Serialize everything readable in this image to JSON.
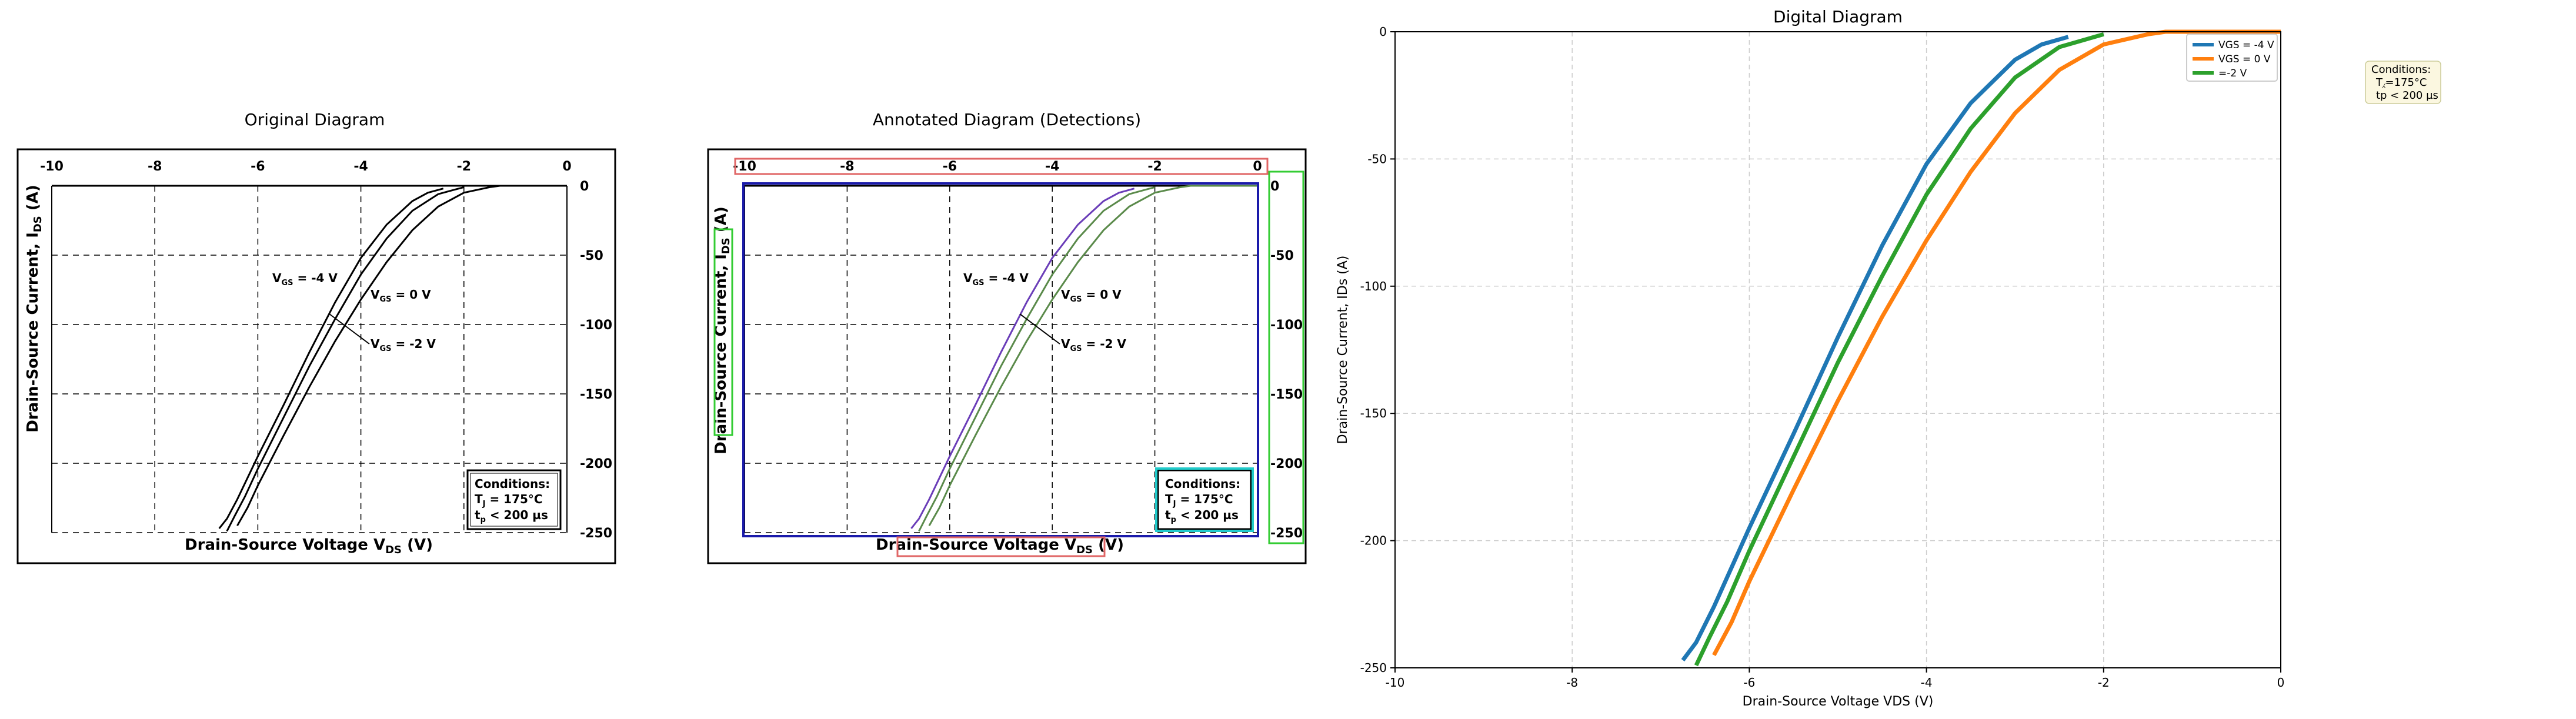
{
  "panels": {
    "original_title": "Original Diagram",
    "annotated_title": "Annotated Diagram (Detections)",
    "digital_title": "Digital Diagram"
  },
  "source_chart": {
    "ylabel_main": "Drain-Source Current, I",
    "ylabel_sub": "DS",
    "ylabel_unit": "(A)",
    "xlabel_main": "Drain-Source Voltage V",
    "xlabel_sub": "DS",
    "xlabel_unit": "(V)",
    "x_ticks": [
      "-10",
      "-8",
      "-6",
      "-4",
      "-2",
      "0"
    ],
    "y_ticks": [
      "0",
      "-50",
      "-100",
      "-150",
      "-200",
      "-250"
    ],
    "curve_labels": [
      {
        "pre": "V",
        "sub": "GS",
        "post": " = -4 V"
      },
      {
        "pre": "V",
        "sub": "GS",
        "post": " = 0 V"
      },
      {
        "pre": "V",
        "sub": "GS",
        "post": " = -2 V"
      }
    ],
    "conditions": {
      "title": "Conditions:",
      "line1_pre": "T",
      "line1_sub": "J",
      "line1_post": " = 175°C",
      "line2_pre": "t",
      "line2_sub": "p",
      "line2_post": " < 200 µs"
    }
  },
  "chart_data": {
    "type": "line",
    "title": "Digital Diagram",
    "xlabel": "Drain-Source Voltage VDS (V)",
    "ylabel": "Drain-Source Current, IDs (A)",
    "xlim": [
      -10,
      0
    ],
    "ylim": [
      -250,
      0
    ],
    "x_ticks": [
      -10,
      -8,
      -6,
      -4,
      -2,
      0
    ],
    "y_ticks": [
      0,
      -50,
      -100,
      -150,
      -200,
      -250
    ],
    "grid": true,
    "legend_position": "top-right",
    "annotation": {
      "line1": "Conditions:",
      "line2": "T⁁=175°C",
      "line3": "tp < 200 µs"
    },
    "series": [
      {
        "name": "VGS = -4 V",
        "color": "#1f77b4",
        "x": [
          -6.75,
          -6.6,
          -6.4,
          -6.0,
          -5.5,
          -5.0,
          -4.5,
          -4.0,
          -3.5,
          -3.0,
          -2.7,
          -2.4
        ],
        "y": [
          -247,
          -240,
          -226,
          -195,
          -158,
          -120,
          -84,
          -52,
          -28,
          -11,
          -5,
          -2
        ]
      },
      {
        "name": "VGS = 0 V",
        "color": "#ff7f0e",
        "x": [
          -6.4,
          -6.2,
          -6.0,
          -5.5,
          -5.0,
          -4.5,
          -4.0,
          -3.5,
          -3.0,
          -2.5,
          -2.0,
          -1.5,
          -1.3,
          0
        ],
        "y": [
          -245,
          -232,
          -216,
          -180,
          -145,
          -112,
          -82,
          -55,
          -32,
          -15,
          -5,
          -1,
          0,
          0
        ]
      },
      {
        "name": "=-2 V",
        "color": "#2ca02c",
        "x": [
          -6.6,
          -6.45,
          -6.25,
          -6.0,
          -5.5,
          -5.0,
          -4.5,
          -4.0,
          -3.5,
          -3.0,
          -2.5,
          -2.2,
          -2.0
        ],
        "y": [
          -249,
          -238,
          -224,
          -204,
          -167,
          -130,
          -96,
          -64,
          -38,
          -18,
          -6,
          -3,
          -1
        ]
      }
    ]
  },
  "colors": {
    "det_red": "#e06666",
    "det_green": "#33cc33",
    "det_blue": "#1a1aaa",
    "det_purple": "#6a3db8",
    "det_olive": "#5a8a4a",
    "det_cyan": "#22cccc",
    "grid": "#cccccc",
    "annotation_bg": "#fbf7e0"
  }
}
